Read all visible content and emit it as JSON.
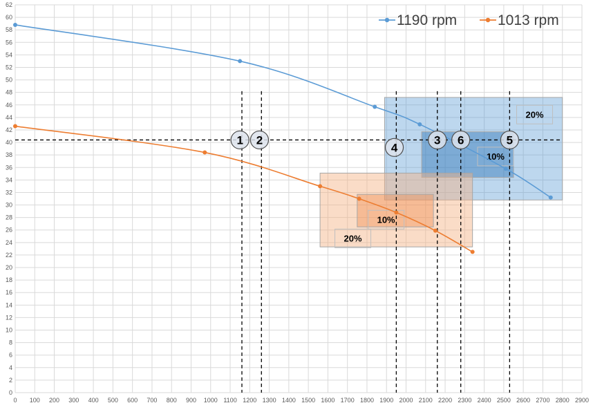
{
  "chart_data": {
    "type": "line",
    "title": "",
    "xlabel": "",
    "ylabel": "",
    "xlim": [
      0,
      2900
    ],
    "ylim": [
      0,
      62
    ],
    "x_ticks": [
      0,
      100,
      200,
      300,
      400,
      500,
      600,
      700,
      800,
      900,
      1000,
      1100,
      1200,
      1300,
      1400,
      1500,
      1600,
      1700,
      1800,
      1900,
      2000,
      2100,
      2200,
      2300,
      2400,
      2500,
      2600,
      2700,
      2800,
      2900
    ],
    "y_ticks": [
      0,
      2,
      4,
      6,
      8,
      10,
      12,
      14,
      16,
      18,
      20,
      22,
      24,
      26,
      28,
      30,
      32,
      34,
      36,
      38,
      40,
      42,
      44,
      46,
      48,
      50,
      52,
      54,
      56,
      58,
      60,
      62
    ],
    "grid": true,
    "legend_position": "top-right",
    "series": [
      {
        "name": "1190 rpm",
        "color": "#5b9bd5",
        "points": [
          [
            0,
            58.8
          ],
          [
            1150,
            53.0
          ],
          [
            1840,
            45.7
          ],
          [
            2070,
            42.9
          ],
          [
            2510,
            35.8
          ],
          [
            2740,
            31.2
          ]
        ]
      },
      {
        "name": "1013 rpm",
        "color": "#ed7d31",
        "points": [
          [
            0,
            42.6
          ],
          [
            970,
            38.4
          ],
          [
            1560,
            33.0
          ],
          [
            1760,
            31.0
          ],
          [
            1950,
            28.8
          ],
          [
            2150,
            25.9
          ],
          [
            2340,
            22.5
          ]
        ]
      }
    ],
    "horizontal_line": 40.4,
    "vertical_lines": [
      1160,
      1260,
      1950,
      2160,
      2280,
      2530
    ],
    "operating_points": [
      {
        "label": "1",
        "x": 1150,
        "y": 40.4
      },
      {
        "label": "2",
        "x": 1250,
        "y": 40.4
      },
      {
        "label": "3",
        "x": 2160,
        "y": 40.4
      },
      {
        "label": "6",
        "x": 2280,
        "y": 40.4
      },
      {
        "label": "5",
        "x": 2530,
        "y": 40.4
      },
      {
        "label": "4",
        "x": 1940,
        "y": 39.2
      }
    ],
    "tolerance_boxes": [
      {
        "group": "1190 rpm",
        "label": "20%",
        "x": [
          1890,
          2800
        ],
        "y": [
          30.8,
          47.2
        ],
        "fill": "#5b9bd5",
        "opacity": 0.4,
        "label_at": [
          2580,
          44.4
        ]
      },
      {
        "group": "1190 rpm",
        "label": "10%",
        "x": [
          2080,
          2550
        ],
        "y": [
          34.4,
          41.7
        ],
        "fill": "#2e75b6",
        "opacity": 0.45,
        "label_at": [
          2380,
          37.7
        ]
      },
      {
        "group": "1013 rpm",
        "label": "20%",
        "x": [
          1560,
          2340
        ],
        "y": [
          23.3,
          35.1
        ],
        "fill": "#f4b183",
        "opacity": 0.45,
        "label_at": [
          1650,
          24.6
        ]
      },
      {
        "group": "1013 rpm",
        "label": "10%",
        "x": [
          1750,
          2140
        ],
        "y": [
          26.5,
          31.7
        ],
        "fill": "#f08a4b",
        "opacity": 0.4,
        "label_at": [
          1820,
          27.6
        ]
      }
    ]
  }
}
